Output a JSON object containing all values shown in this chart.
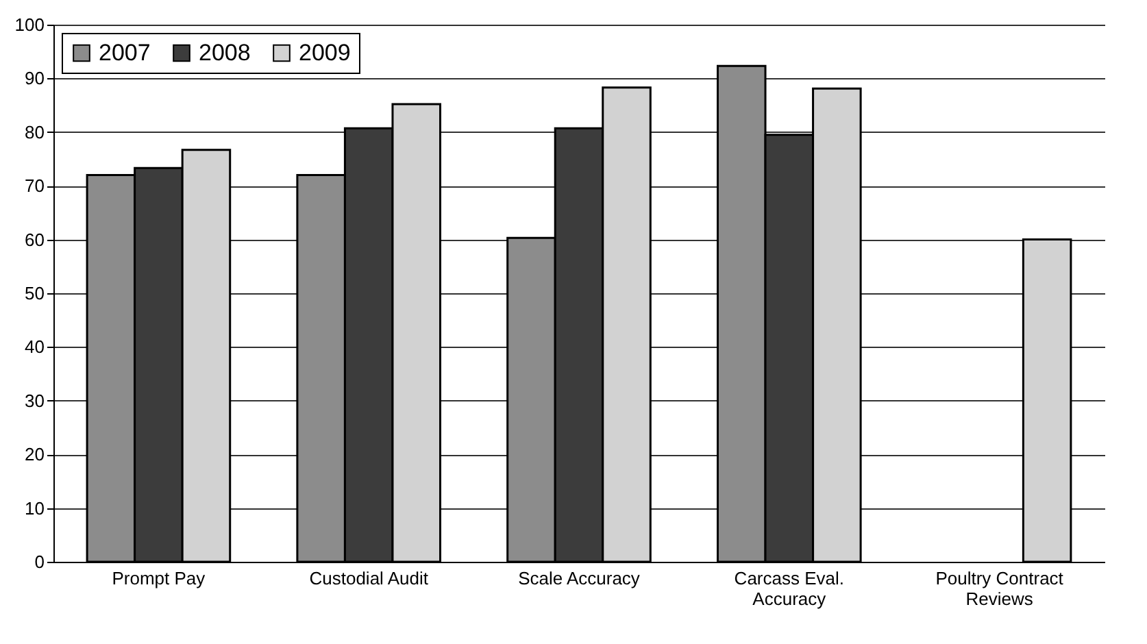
{
  "chart_data": {
    "type": "bar",
    "categories": [
      "Prompt Pay",
      "Custodial Audit",
      "Scale Accuracy",
      "Carcass Eval. Accuracy",
      "Poultry Contract Reviews"
    ],
    "series": [
      {
        "name": "2007",
        "color": "#8c8c8c",
        "values": [
          72,
          72,
          60.3,
          92.3,
          null
        ]
      },
      {
        "name": "2008",
        "color": "#3c3c3c",
        "values": [
          73.3,
          80.7,
          80.7,
          79.5,
          null
        ]
      },
      {
        "name": "2009",
        "color": "#d2d2d2",
        "values": [
          76.7,
          85.2,
          88.3,
          88.1,
          60
        ]
      }
    ],
    "ylim": [
      0,
      100
    ],
    "yticks": [
      0,
      10,
      20,
      30,
      40,
      50,
      60,
      70,
      80,
      90,
      100
    ],
    "grid": "y",
    "legend": "top left"
  }
}
